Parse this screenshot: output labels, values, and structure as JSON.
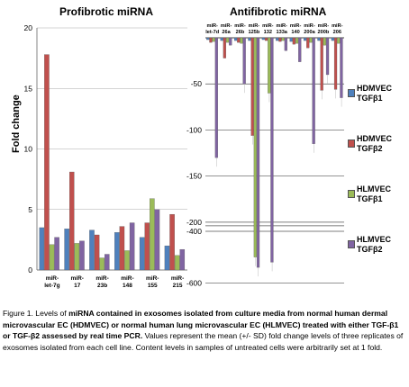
{
  "figure": {
    "left_title": "Profibrotic miRNA",
    "right_title": "Antifibrotic miRNA",
    "ylabel": "Fold change",
    "caption": {
      "prefix": "Figure 1. Levels of ",
      "bold": "miRNA contained in exosomes isolated from culture media from normal human dermal microvascular EC (HDMVEC) or normal human lung microvascular EC (HLMVEC) treated with either TGF-β1 or TGF-β2 assessed by real time PCR.",
      "rest": " Values represent the mean (+/- SD) fold change levels of three replicates of exosomes isolated from each cell line. Content levels in samples of untreated cells were arbitrarily set at 1 fold."
    }
  },
  "legend": [
    {
      "label": "HDMVEC\nTGFβ1",
      "color": "#4f81bd"
    },
    {
      "label": "HDMVEC\nTGFβ2",
      "color": "#c0504d"
    },
    {
      "label": "HLMVEC\nTGFβ1",
      "color": "#9bbb59"
    },
    {
      "label": "HLMVEC\nTGFβ2",
      "color": "#8064a2"
    }
  ],
  "chart_data": [
    {
      "type": "bar",
      "title": "Profibrotic miRNA",
      "ylabel": "Fold change",
      "ylim": [
        0,
        20
      ],
      "yticks": [
        "0",
        "5",
        "10",
        "15",
        "20"
      ],
      "categories": [
        "miR-let-7g",
        "miR-17",
        "miR-23b",
        "miR-148",
        "miR-155",
        "miR-215"
      ],
      "category_labels": [
        [
          "miR-",
          "let-7g"
        ],
        [
          "miR-",
          "17"
        ],
        [
          "miR-",
          "23b"
        ],
        [
          "miR-",
          "148"
        ],
        [
          "miR-",
          "155"
        ],
        [
          "miR-",
          "215"
        ]
      ],
      "series": [
        {
          "name": "HDMVEC TGFβ1",
          "color": "#4f81bd",
          "values": [
            3.5,
            3.4,
            3.3,
            3.1,
            2.7,
            2.0
          ]
        },
        {
          "name": "HDMVEC TGFβ2",
          "color": "#c0504d",
          "values": [
            17.8,
            8.1,
            2.9,
            3.6,
            3.9,
            4.6
          ]
        },
        {
          "name": "HLMVEC TGFβ1",
          "color": "#9bbb59",
          "values": [
            2.1,
            2.2,
            1.0,
            1.6,
            5.9,
            1.2
          ]
        },
        {
          "name": "HLMVEC TGFβ2",
          "color": "#8064a2",
          "values": [
            2.7,
            2.4,
            1.3,
            3.9,
            5.0,
            1.7
          ]
        }
      ]
    },
    {
      "type": "bar",
      "title": "Antifibrotic miRNA",
      "axis": "broken",
      "ylim": [
        -600,
        0
      ],
      "yticks": [
        "-50",
        "-100",
        "-150",
        "-200",
        "-400",
        "-600"
      ],
      "categories": [
        "miR-let-7d",
        "miR-26a",
        "miR-26b",
        "miR-125b",
        "miR-132",
        "miR-133a",
        "miR-140",
        "miR-200a",
        "miR-200b",
        "miR-206"
      ],
      "category_labels": [
        [
          "miR-",
          "let-7d"
        ],
        [
          "miR-",
          "26a"
        ],
        [
          "miR-",
          "26b"
        ],
        [
          "miR-",
          "125b"
        ],
        [
          "miR-",
          "132"
        ],
        [
          "miR-",
          "133a"
        ],
        [
          "miR-",
          "140"
        ],
        [
          "miR-",
          "200a"
        ],
        [
          "miR-",
          "200b"
        ],
        [
          "miR-",
          "206"
        ]
      ],
      "series": [
        {
          "name": "HDMVEC TGFβ1",
          "color": "#4f81bd",
          "values": [
            -2,
            -3,
            -3,
            -3,
            -2,
            -3,
            -4,
            -3,
            -3,
            -3
          ]
        },
        {
          "name": "HDMVEC TGFβ2",
          "color": "#c0504d",
          "values": [
            -5,
            -22,
            -5,
            -106,
            -3,
            -4,
            -7,
            -11,
            -57,
            -56
          ]
        },
        {
          "name": "HLMVEC TGFβ1",
          "color": "#9bbb59",
          "values": [
            -4,
            -5,
            -6,
            -500,
            -60,
            -3,
            -6,
            -5,
            -8,
            -6
          ]
        },
        {
          "name": "HLMVEC TGFβ2",
          "color": "#8064a2",
          "values": [
            -130,
            -8,
            -50,
            -540,
            -520,
            -14,
            -26,
            -115,
            -40,
            -65
          ]
        }
      ]
    }
  ]
}
